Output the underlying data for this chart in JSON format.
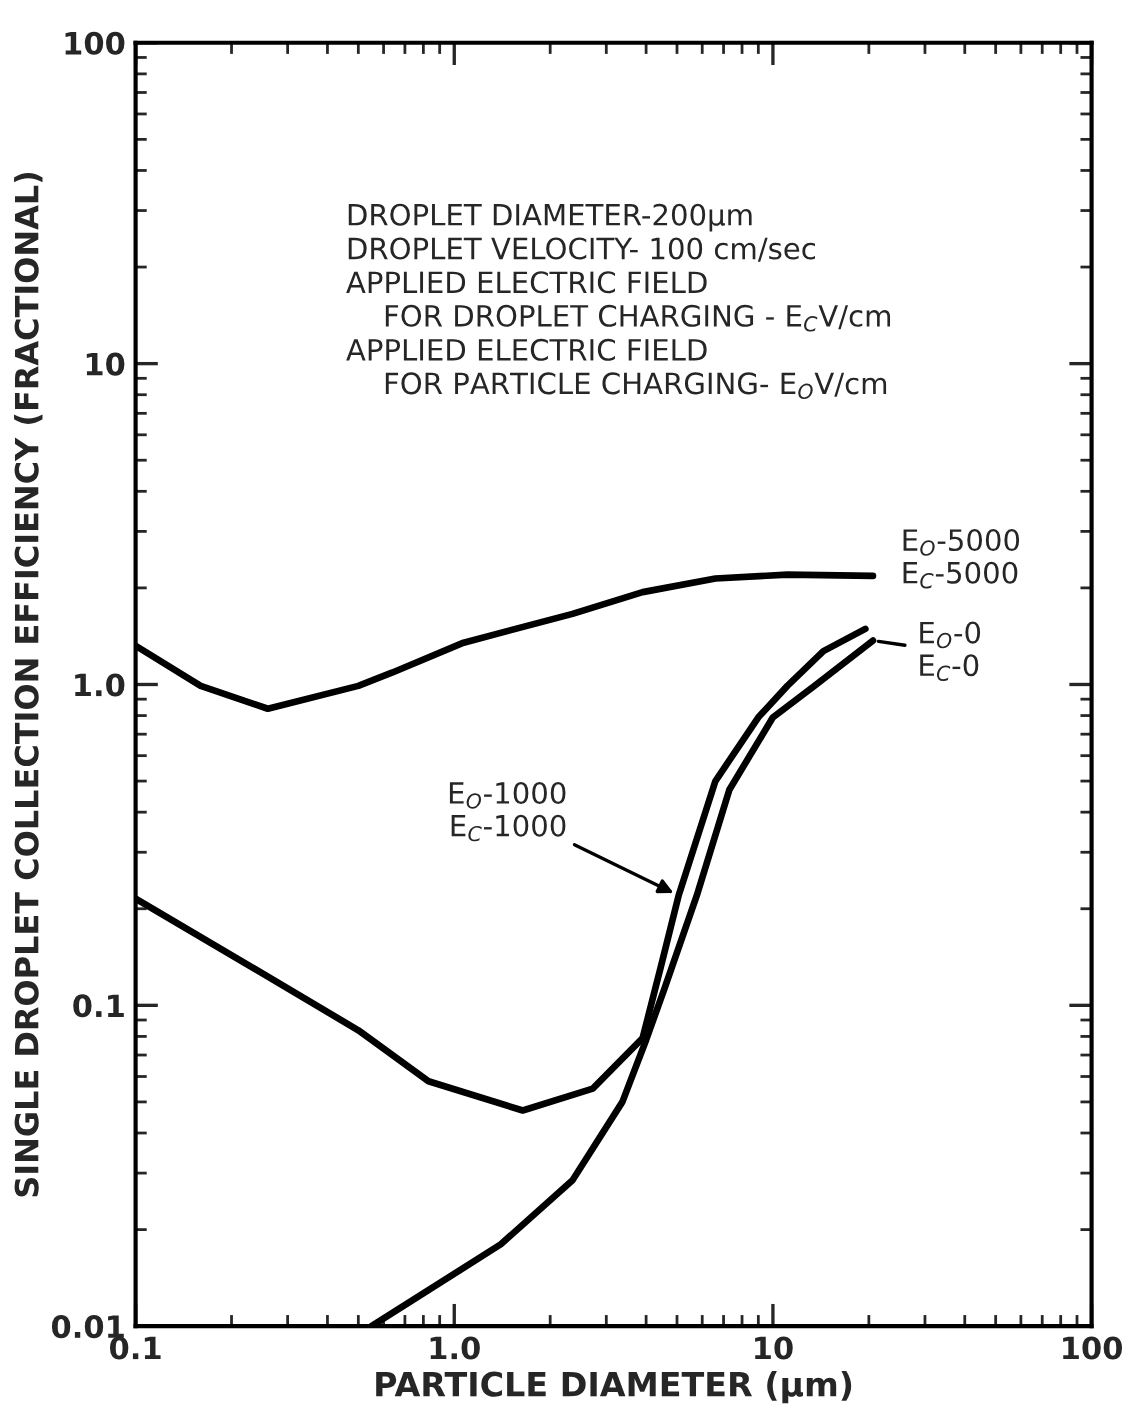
{
  "chart_data": {
    "type": "line",
    "xlabel": "PARTICLE DIAMETER (μm)",
    "ylabel": "SINGLE DROPLET COLLECTION EFFICIENCY (FRACTIONAL)",
    "log": "xy",
    "xlim": [
      0.1,
      100
    ],
    "ylim": [
      0.01,
      100
    ],
    "xticks": [
      0.1,
      {
        "value": 1,
        "label": "1.0"
      },
      10,
      100
    ],
    "yticks": [
      0.01,
      0.1,
      {
        "value": 1,
        "label": "1.0"
      },
      10,
      100
    ],
    "grid": false,
    "marker": "none",
    "line_style": "solid",
    "series": [
      {
        "color": "#000000",
        "x": [
          0.1,
          0.16,
          0.26,
          0.5,
          0.64,
          1.07,
          2.35,
          3.9,
          6.6,
          11.1,
          20.6
        ],
        "values": [
          1.32,
          0.99,
          0.84,
          0.99,
          1.09,
          1.35,
          1.66,
          1.94,
          2.14,
          2.2,
          2.18
        ]
      },
      {
        "color": "#000000",
        "x": [
          0.1,
          0.23,
          0.5,
          0.83,
          1.64,
          2.72,
          3.9,
          4.45,
          5.06,
          6.6,
          9.0,
          11.1,
          14.4,
          19.5
        ],
        "values": [
          0.215,
          0.132,
          0.0836,
          0.058,
          0.047,
          0.055,
          0.079,
          0.132,
          0.22,
          0.5,
          0.79,
          0.99,
          1.27,
          1.49
        ]
      },
      {
        "color": "#000000",
        "x": [
          0.55,
          1.4,
          2.35,
          3.37,
          4.0,
          4.57,
          5.77,
          7.3,
          10,
          13.5,
          20.6
        ],
        "values": [
          0.01,
          0.018,
          0.0285,
          0.05,
          0.078,
          0.113,
          0.22,
          0.47,
          0.79,
          0.99,
          1.37
        ]
      }
    ],
    "annotations": [
      "DROPLET DIAMETER-200μm\nDROPLET VELOCITY- 100 cm/sec\nAPPLIED ELECTRIC FIELD\n    FOR DROPLET CHARGING - E$_{C}$V/cm\nAPPLIED ELECTRIC FIELD\n    FOR PARTICLE CHARGING- E$_{O}$V/cm",
      "E$_{O}$-5000\nE$_{C}$-5000",
      "E$_{O}$-0\nE$_{C}$-0",
      {
        "text": "E$_{O}$-1000\nE$_{C}$-1000",
        "x": 5.06,
        "y": 0.22
      }
    ]
  }
}
